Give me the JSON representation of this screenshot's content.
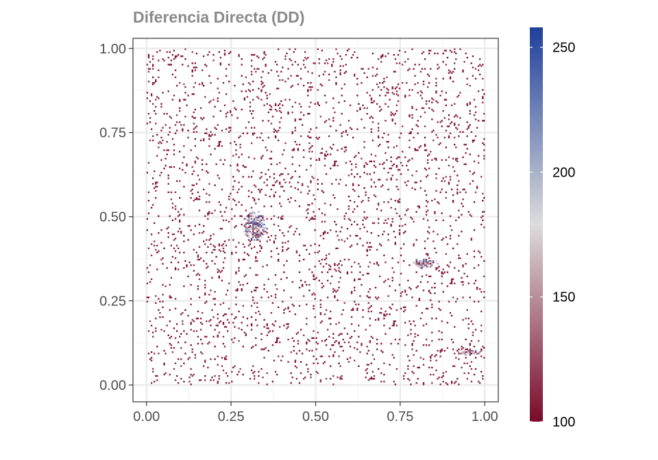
{
  "chart_data": {
    "type": "heatmap",
    "title": "Diferencia Directa (DD)",
    "xlabel": "",
    "ylabel": "",
    "xlim": [
      -0.04,
      1.04
    ],
    "ylim": [
      -0.05,
      1.03
    ],
    "x_ticks": [
      0.0,
      0.25,
      0.5,
      0.75,
      1.0
    ],
    "x_tick_labels": [
      "0.00",
      "0.25",
      "0.50",
      "0.75",
      "1.00"
    ],
    "y_ticks": [
      0.0,
      0.25,
      0.5,
      0.75,
      1.0
    ],
    "y_tick_labels": [
      "0.00",
      "0.25",
      "0.50",
      "0.75",
      "1.00"
    ],
    "grid": true,
    "background": "#ffffff",
    "grid_major_color": "#ebebeb",
    "grid_minor_color": "#f4f4f4",
    "color_scale": {
      "min": 100,
      "max": 258,
      "ticks": [
        100,
        150,
        200,
        250
      ],
      "tick_labels": [
        "100",
        "150",
        "200",
        "250"
      ],
      "low_color": "#7a0a2a",
      "mid_color": "#dcdcdc",
      "high_color": "#1f3f9a",
      "position": "right"
    },
    "noise_density": 0.045,
    "noise_value_range": [
      100,
      115
    ],
    "clusters": [
      {
        "x": 0.32,
        "y": 0.47,
        "rx": 0.035,
        "ry": 0.045,
        "value_range": [
          100,
          258
        ]
      },
      {
        "x": 0.82,
        "y": 0.36,
        "rx": 0.04,
        "ry": 0.015,
        "value_range": [
          100,
          240
        ]
      },
      {
        "x": 0.95,
        "y": 0.095,
        "rx": 0.035,
        "ry": 0.008,
        "value_range": [
          100,
          230
        ]
      }
    ]
  }
}
